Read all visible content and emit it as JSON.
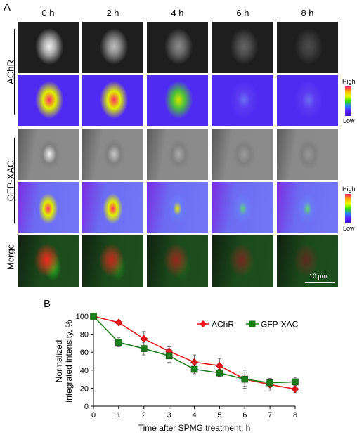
{
  "panelA": {
    "letter": "A",
    "time_labels": [
      "0 h",
      "2 h",
      "4 h",
      "6 h",
      "8 h"
    ],
    "row_labels": {
      "achr": "AChR",
      "gfpxac": "GFP-XAC",
      "merge": "Merge"
    },
    "colorbar": {
      "high": "High",
      "low": "Low"
    },
    "scalebar": "10 µm",
    "intensity_fraction": [
      1.0,
      0.75,
      0.5,
      0.3,
      0.18
    ],
    "gfp_fraction": [
      1.0,
      0.64,
      0.41,
      0.3,
      0.26
    ]
  },
  "panelB": {
    "letter": "B",
    "chart_data": {
      "type": "line",
      "xlabel": "Time after SPMG treatment, h",
      "ylabel_line1": "Normalized",
      "ylabel_line2": "integrated intensity, %",
      "xlim": [
        0,
        8
      ],
      "ylim": [
        0,
        100
      ],
      "xticks": [
        0,
        1,
        2,
        3,
        4,
        5,
        6,
        7,
        8
      ],
      "yticks": [
        0,
        20,
        40,
        60,
        80,
        100
      ],
      "legend_position": "top-right",
      "series": [
        {
          "name": "AChR",
          "color": "#e8151b",
          "marker": "diamond",
          "x": [
            0,
            1,
            2,
            3,
            4,
            5,
            6,
            7,
            8
          ],
          "y": [
            100,
            93,
            75,
            61,
            49,
            45,
            30,
            24,
            19
          ],
          "err": [
            0,
            2,
            8,
            5,
            8,
            8,
            10,
            7,
            4
          ]
        },
        {
          "name": "GFP-XAC",
          "color": "#1a7d1a",
          "marker": "square",
          "x": [
            0,
            1,
            2,
            3,
            4,
            5,
            6,
            7,
            8
          ],
          "y": [
            100,
            71,
            64,
            56,
            41,
            37,
            30,
            26,
            27
          ],
          "err": [
            0,
            5,
            7,
            7,
            5,
            4,
            8,
            4,
            5
          ]
        }
      ]
    }
  }
}
